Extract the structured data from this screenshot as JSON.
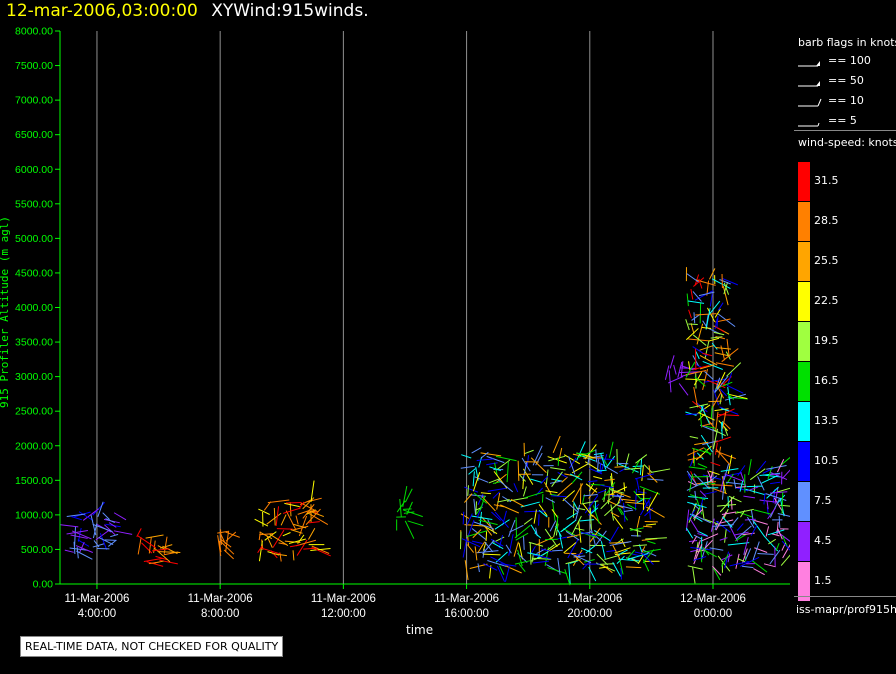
{
  "title": {
    "datetime": "12-mar-2006,03:00:00",
    "subtitle": "XYWind:915winds."
  },
  "chart_data": {
    "type": "scatter",
    "title": "XYWind:915winds.",
    "xlabel": "time",
    "ylabel": "915 Profiler Altitude (m agl)",
    "ylim": [
      0,
      8000
    ],
    "yticks": [
      "0.00",
      "500.00",
      "1000.00",
      "1500.00",
      "2000.00",
      "2500.00",
      "3000.00",
      "3500.00",
      "4000.00",
      "4500.00",
      "5000.00",
      "5500.00",
      "6000.00",
      "6500.00",
      "7000.00",
      "7500.00",
      "8000.00"
    ],
    "xticks": [
      {
        "date": "11-Mar-2006",
        "time": "4:00:00"
      },
      {
        "date": "11-Mar-2006",
        "time": "8:00:00"
      },
      {
        "date": "11-Mar-2006",
        "time": "12:00:00"
      },
      {
        "date": "11-Mar-2006",
        "time": "16:00:00"
      },
      {
        "date": "11-Mar-2006",
        "time": "20:00:00"
      },
      {
        "date": "12-Mar-2006",
        "time": "0:00:00"
      }
    ],
    "xlim_hours": [
      2.8,
      26.5
    ],
    "grid": "vertical",
    "clusters": [
      {
        "x": [
          2.8,
          4.6
        ],
        "y": [
          450,
          1050
        ],
        "speed": "4.5-10.5"
      },
      {
        "x": [
          5.2,
          6.2
        ],
        "y": [
          250,
          780
        ],
        "speed": "25.5-31.5"
      },
      {
        "x": [
          7.9,
          8.2
        ],
        "y": [
          450,
          780
        ],
        "speed": "28.5"
      },
      {
        "x": [
          9.1,
          11.1
        ],
        "y": [
          350,
          1200
        ],
        "speed": "22.5-31.5"
      },
      {
        "x": [
          13.7,
          14.1
        ],
        "y": [
          900,
          1200
        ],
        "speed": "16.5"
      },
      {
        "x": [
          15.8,
          22.0
        ],
        "y": [
          200,
          1900
        ],
        "speed": "7.5-25.5"
      },
      {
        "x": [
          22.5,
          23.0
        ],
        "y": [
          2900,
          3200
        ],
        "speed": "4.5"
      },
      {
        "x": [
          23.1,
          24.5
        ],
        "y": [
          1400,
          4500
        ],
        "speed": "7.5-31.5"
      },
      {
        "x": [
          23.1,
          26.3
        ],
        "y": [
          200,
          1700
        ],
        "speed": "1.5-19.5"
      }
    ]
  },
  "legend": {
    "barb_header": "barb flags in knots",
    "flags": [
      "== 100",
      "== 50",
      "== 10",
      "== 5"
    ],
    "speed_header": "wind-speed: knots",
    "speed_labels": [
      "31.5",
      "28.5",
      "25.5",
      "22.5",
      "19.5",
      "16.5",
      "13.5",
      "10.5",
      "7.5",
      "4.5",
      "1.5"
    ],
    "speed_colors": [
      "#ff0000",
      "#ff8000",
      "#ffa500",
      "#ffff00",
      "#a0ff40",
      "#00e000",
      "#00ffff",
      "#0000ff",
      "#6090ff",
      "#9020ff",
      "#ff80e0"
    ]
  },
  "source": "iss-mapr/prof915h",
  "qc_notice": "REAL-TIME DATA, NOT CHECKED FOR QUALITY",
  "colors": {
    "axis": "#00ff00",
    "title_date": "#ffff00",
    "grid": "#909090"
  }
}
